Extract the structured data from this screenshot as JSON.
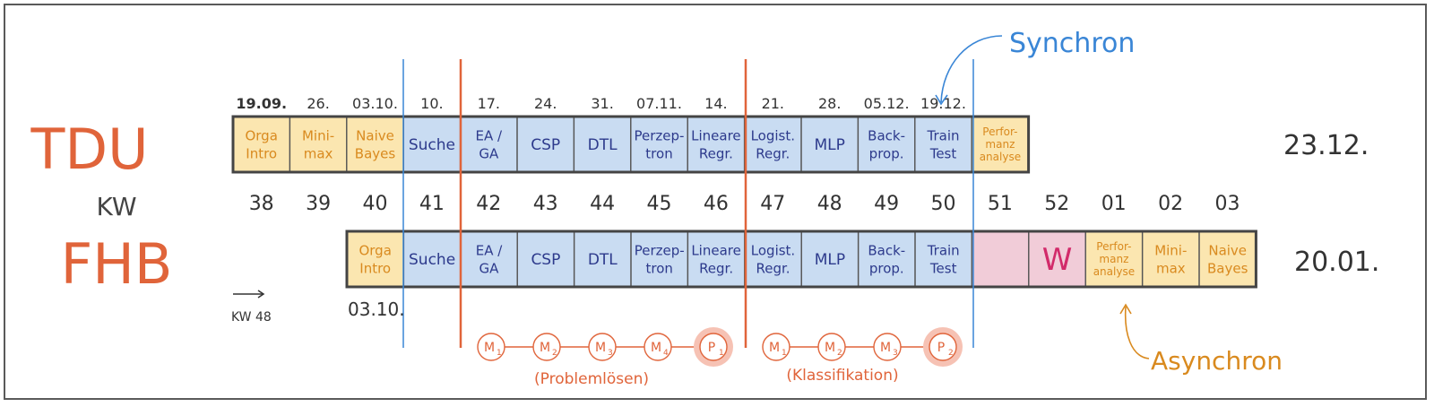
{
  "labels": {
    "tdu": "TDU",
    "kw": "KW",
    "fhb": "FHB",
    "tdu_end": "23.12.",
    "fhb_end": "20.01.",
    "kw_note": "KW 48",
    "fhb_start": "03.10.",
    "synchron": "Synchron",
    "asynchron": "Asynchron",
    "problemloesen": "(Problemlösen)",
    "klassifikation": "(Klassifikation)"
  },
  "tdu_dates": [
    "19.09.",
    "26.",
    "03.10.",
    "10.",
    "17.",
    "24.",
    "31.",
    "07.11.",
    "14.",
    "21.",
    "28.",
    "05.12.",
    "19.12."
  ],
  "weeks": [
    "38",
    "39",
    "40",
    "41",
    "42",
    "43",
    "44",
    "45",
    "46",
    "47",
    "48",
    "49",
    "50",
    "51",
    "52",
    "01",
    "02",
    "03"
  ],
  "tdu_cells": [
    {
      "l1": "Orga",
      "l2": "Intro",
      "kind": "orange"
    },
    {
      "l1": "Mini-",
      "l2": "max",
      "kind": "orange"
    },
    {
      "l1": "Naive",
      "l2": "Bayes",
      "kind": "orange"
    },
    {
      "l1": "Suche",
      "l2": "",
      "kind": "blue"
    },
    {
      "l1": "EA /",
      "l2": "GA",
      "kind": "blue"
    },
    {
      "l1": "CSP",
      "l2": "",
      "kind": "blue"
    },
    {
      "l1": "DTL",
      "l2": "",
      "kind": "blue"
    },
    {
      "l1": "Perzep-",
      "l2": "tron",
      "kind": "blue"
    },
    {
      "l1": "Lineare",
      "l2": "Regr.",
      "kind": "blue"
    },
    {
      "l1": "Logist.",
      "l2": "Regr.",
      "kind": "blue"
    },
    {
      "l1": "MLP",
      "l2": "",
      "kind": "blue"
    },
    {
      "l1": "Back-",
      "l2": "prop.",
      "kind": "blue"
    },
    {
      "l1": "Train",
      "l2": "Test",
      "kind": "blue"
    },
    {
      "l1": "Perfor-",
      "l2": "manz",
      "l3": "analyse",
      "kind": "orange"
    }
  ],
  "fhb_cells": [
    {
      "l1": "Orga",
      "l2": "Intro",
      "kind": "orange"
    },
    {
      "l1": "Suche",
      "l2": "",
      "kind": "blue"
    },
    {
      "l1": "EA /",
      "l2": "GA",
      "kind": "blue"
    },
    {
      "l1": "CSP",
      "l2": "",
      "kind": "blue"
    },
    {
      "l1": "DTL",
      "l2": "",
      "kind": "blue"
    },
    {
      "l1": "Perzep-",
      "l2": "tron",
      "kind": "blue"
    },
    {
      "l1": "Lineare",
      "l2": "Regr.",
      "kind": "blue"
    },
    {
      "l1": "Logist.",
      "l2": "Regr.",
      "kind": "blue"
    },
    {
      "l1": "MLP",
      "l2": "",
      "kind": "blue"
    },
    {
      "l1": "Back-",
      "l2": "prop.",
      "kind": "blue"
    },
    {
      "l1": "Train",
      "l2": "Test",
      "kind": "blue"
    },
    {
      "l1": "",
      "l2": "",
      "kind": "pink"
    },
    {
      "l1": "W",
      "l2": "",
      "kind": "pink"
    },
    {
      "l1": "Perfor-",
      "l2": "manz",
      "l3": "analyse",
      "kind": "orange"
    },
    {
      "l1": "Mini-",
      "l2": "max",
      "kind": "orange"
    },
    {
      "l1": "Naive",
      "l2": "Bayes",
      "kind": "orange"
    }
  ],
  "milestones_a": [
    {
      "m": "M",
      "sub": "1"
    },
    {
      "m": "M",
      "sub": "2"
    },
    {
      "m": "M",
      "sub": "3"
    },
    {
      "m": "M",
      "sub": "4"
    },
    {
      "m": "P",
      "sub": "1",
      "hl": true
    }
  ],
  "milestones_b": [
    {
      "m": "M",
      "sub": "1"
    },
    {
      "m": "M",
      "sub": "2"
    },
    {
      "m": "M",
      "sub": "3"
    },
    {
      "m": "P",
      "sub": "2",
      "hl": true
    }
  ],
  "colors": {
    "red": "#e0643a",
    "orange_text": "#d98a1f",
    "orange_fill": "#fbe6b0",
    "blue_fill": "#c9dcf2",
    "pink_fill": "#f1ccd8",
    "pink_text": "#d22a6a",
    "navy_text": "#2d3a8c",
    "sync_blue": "#3a86d6",
    "ink": "#333333"
  }
}
